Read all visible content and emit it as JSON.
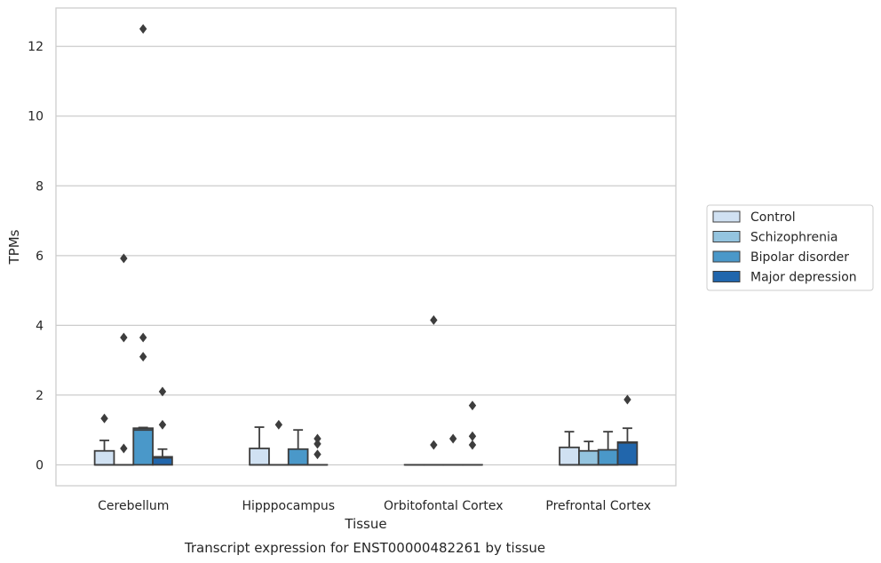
{
  "chart_data": {
    "type": "box",
    "xlabel": "Tissue",
    "ylabel": "TPMs",
    "caption": "Transcript expression for ENST00000482261 by tissue",
    "ylim": [
      -0.6,
      13.1
    ],
    "yticks": [
      0,
      2,
      4,
      6,
      8,
      10,
      12
    ],
    "ytick_labels": [
      "0",
      "2",
      "4",
      "6",
      "8",
      "10",
      "12"
    ],
    "grid": "horizontal",
    "legend_position": "right",
    "categories": [
      "Cerebellum",
      "Hipppocampus",
      "Orbitofontal Cortex",
      "Prefrontal Cortex"
    ],
    "series": [
      {
        "name": "Control",
        "color": "#d0e1f2",
        "boxes": [
          {
            "q1": 0,
            "median": 0,
            "q3": 0.4,
            "whisker_low": 0,
            "whisker_high": 0.7,
            "outliers": [
              1.33
            ]
          },
          {
            "q1": 0,
            "median": 0,
            "q3": 0.47,
            "whisker_low": 0,
            "whisker_high": 1.08,
            "outliers": []
          },
          {
            "q1": 0,
            "median": 0,
            "q3": 0,
            "whisker_low": 0,
            "whisker_high": 0,
            "outliers": []
          },
          {
            "q1": 0,
            "median": 0,
            "q3": 0.5,
            "whisker_low": 0,
            "whisker_high": 0.95,
            "outliers": []
          }
        ]
      },
      {
        "name": "Schizophrenia",
        "color": "#94c4df",
        "boxes": [
          {
            "q1": 0,
            "median": 0,
            "q3": 0,
            "whisker_low": 0,
            "whisker_high": 0,
            "outliers": [
              0.47,
              3.65,
              5.92
            ]
          },
          {
            "q1": 0,
            "median": 0,
            "q3": 0,
            "whisker_low": 0,
            "whisker_high": 0,
            "outliers": [
              1.15
            ]
          },
          {
            "q1": 0,
            "median": 0,
            "q3": 0,
            "whisker_low": 0,
            "whisker_high": 0,
            "outliers": [
              0.57,
              4.15
            ]
          },
          {
            "q1": 0,
            "median": 0,
            "q3": 0.4,
            "whisker_low": 0,
            "whisker_high": 0.67,
            "outliers": []
          }
        ]
      },
      {
        "name": "Bipolar disorder",
        "color": "#4a98c9",
        "boxes": [
          {
            "q1": 0,
            "median": 1.0,
            "q3": 1.05,
            "whisker_low": 0,
            "whisker_high": 1.07,
            "outliers": [
              3.1,
              3.65,
              12.5
            ]
          },
          {
            "q1": 0,
            "median": 0,
            "q3": 0.45,
            "whisker_low": 0,
            "whisker_high": 1.0,
            "outliers": []
          },
          {
            "q1": 0,
            "median": 0,
            "q3": 0,
            "whisker_low": 0,
            "whisker_high": 0,
            "outliers": [
              0.75
            ]
          },
          {
            "q1": 0,
            "median": 0,
            "q3": 0.43,
            "whisker_low": 0,
            "whisker_high": 0.95,
            "outliers": []
          }
        ]
      },
      {
        "name": "Major depression",
        "color": "#2166ac",
        "boxes": [
          {
            "q1": 0,
            "median": 0.2,
            "q3": 0.23,
            "whisker_low": 0,
            "whisker_high": 0.45,
            "outliers": [
              1.15,
              2.1
            ]
          },
          {
            "q1": 0,
            "median": 0,
            "q3": 0,
            "whisker_low": 0,
            "whisker_high": 0,
            "outliers": [
              0.3,
              0.6,
              0.75
            ]
          },
          {
            "q1": 0,
            "median": 0,
            "q3": 0,
            "whisker_low": 0,
            "whisker_high": 0,
            "outliers": [
              0.57,
              0.82,
              1.7
            ]
          },
          {
            "q1": 0,
            "median": 0.63,
            "q3": 0.65,
            "whisker_low": 0,
            "whisker_high": 1.05,
            "outliers": [
              1.87
            ]
          }
        ]
      }
    ]
  }
}
